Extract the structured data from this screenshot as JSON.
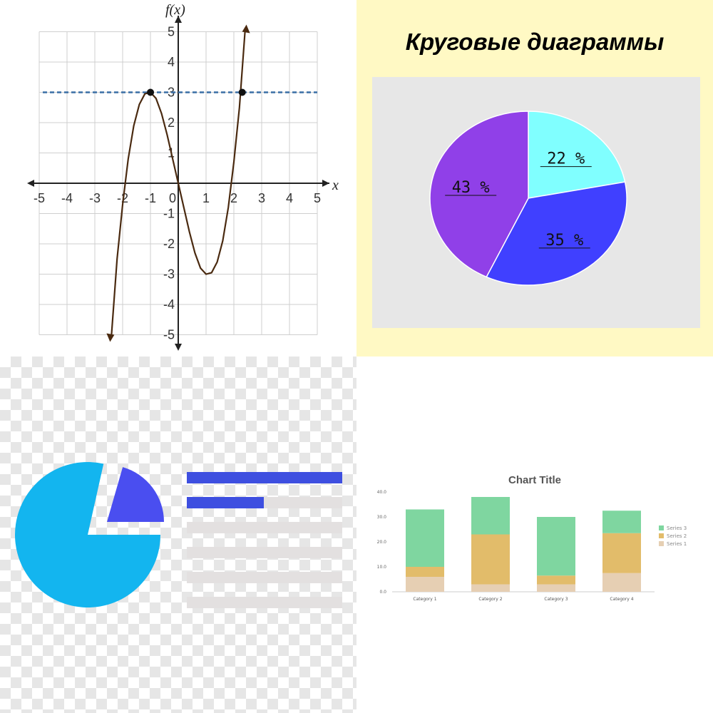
{
  "chart_data": [
    {
      "type": "line",
      "title": "",
      "xlabel": "x",
      "ylabel": "f(x)",
      "xlim": [
        -5,
        5
      ],
      "ylim": [
        -5,
        5
      ],
      "x_ticks": [
        "-5",
        "-4",
        "-3",
        "-2",
        "-1",
        "0",
        "1",
        "2",
        "3",
        "4",
        "5"
      ],
      "y_ticks": [
        "-5",
        "-4",
        "-3",
        "-2",
        "-1",
        "1",
        "2",
        "3",
        "4",
        "5"
      ],
      "grid": true,
      "series": [
        {
          "x": [
            -2.4,
            -2.2,
            -2.0,
            -1.8,
            -1.6,
            -1.4,
            -1.2,
            -1.0,
            -0.8,
            -0.6,
            -0.4,
            -0.2,
            0.0,
            0.2,
            0.4,
            0.6,
            0.8,
            1.0,
            1.2,
            1.4,
            1.6,
            1.8,
            2.0,
            2.2,
            2.4
          ],
          "y": [
            -5.0,
            -2.5,
            -0.7,
            0.8,
            1.9,
            2.6,
            2.95,
            3.0,
            2.8,
            2.3,
            1.6,
            0.8,
            0.0,
            -0.8,
            -1.6,
            -2.3,
            -2.8,
            -3.0,
            -2.95,
            -2.6,
            -1.9,
            -0.8,
            0.7,
            2.5,
            5.0
          ],
          "color": "#4a2a10"
        }
      ],
      "reference_line": {
        "y": 3,
        "style": "dashed",
        "color": "#3a6ea5"
      },
      "marked_points": [
        {
          "x": -1,
          "y": 3
        },
        {
          "x": 2.3,
          "y": 3
        }
      ]
    },
    {
      "type": "pie",
      "title": "Круговые диаграммы",
      "slices": [
        {
          "label": "22 %",
          "value": 22,
          "color": "#80ffff"
        },
        {
          "label": "35 %",
          "value": 35,
          "color": "#4040ff"
        },
        {
          "label": "43 %",
          "value": 43,
          "color": "#9040e8"
        }
      ]
    },
    {
      "type": "bar",
      "title": "Chart Title",
      "stacked": true,
      "categories": [
        "Category 1",
        "Category 2",
        "Category 3",
        "Category 4"
      ],
      "ylim": [
        0,
        40
      ],
      "y_ticks": [
        "0.0",
        "10.0",
        "20.0",
        "30.0",
        "40.0"
      ],
      "legend_position": "right",
      "series": [
        {
          "name": "Series 1",
          "values": [
            6.0,
            3.0,
            3.0,
            7.5
          ],
          "color": "#e6cfb3"
        },
        {
          "name": "Series 2",
          "values": [
            4.0,
            20.0,
            3.5,
            16.0
          ],
          "color": "#e2bc6a"
        },
        {
          "name": "Series 3",
          "values": [
            23.0,
            15.0,
            23.5,
            9.0
          ],
          "color": "#7fd6a0"
        }
      ]
    }
  ],
  "icon": {
    "name": "pie-chart-report-icon",
    "pie_color": "#13b5ef",
    "slice_color": "#4a4ef0",
    "bar_color": "#3e4fe0",
    "line_color": "#e3e0e0"
  }
}
